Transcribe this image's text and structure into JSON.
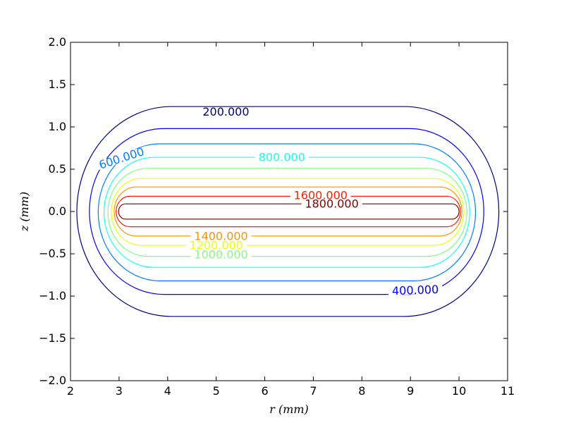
{
  "chart_data": {
    "type": "contour",
    "xlabel": "r (mm)",
    "ylabel": "z (mm)",
    "xlim": [
      2,
      11
    ],
    "ylim": [
      -2.0,
      2.0
    ],
    "xticks": [
      2,
      3,
      4,
      5,
      6,
      7,
      8,
      9,
      10,
      11
    ],
    "yticks": [
      -2.0,
      -1.5,
      -1.0,
      -0.5,
      0.0,
      0.5,
      1.0,
      1.5,
      2.0
    ],
    "xtick_labels": [
      "2",
      "3",
      "4",
      "5",
      "6",
      "7",
      "8",
      "9",
      "10",
      "11"
    ],
    "ytick_labels": [
      "−2.0",
      "−1.5",
      "−1.0",
      "−0.5",
      "0.0",
      "0.5",
      "1.0",
      "1.5",
      "2.0"
    ],
    "grid": false,
    "colormap": "jet",
    "levels": [
      {
        "value": 200,
        "label": "200.000",
        "color": "#00007f",
        "r": [
          2.13,
          10.82
        ],
        "z": [
          -1.24,
          1.24
        ]
      },
      {
        "value": 400,
        "label": "400.000",
        "color": "#0000ff",
        "r": [
          2.39,
          10.51
        ],
        "z": [
          -0.98,
          0.98
        ]
      },
      {
        "value": 600,
        "label": "600.000",
        "color": "#007fff",
        "r": [
          2.57,
          10.34
        ],
        "z": [
          -0.82,
          0.8
        ]
      },
      {
        "value": 800,
        "label": "800.000",
        "color": "#19ffe6",
        "r": [
          2.69,
          10.22
        ],
        "z": [
          -0.66,
          0.64
        ]
      },
      {
        "value": 1000,
        "label": "1000.000",
        "color": "#7fff7f",
        "r": [
          2.77,
          10.16
        ],
        "z": [
          -0.53,
          0.51
        ]
      },
      {
        "value": 1200,
        "label": "1200.000",
        "color": "#e6ff19",
        "r": [
          2.84,
          10.1
        ],
        "z": [
          -0.4,
          0.39
        ]
      },
      {
        "value": 1400,
        "label": "1400.000",
        "color": "#ff9400",
        "r": [
          2.9,
          10.06
        ],
        "z": [
          -0.29,
          0.29
        ]
      },
      {
        "value": 1600,
        "label": "1600.000",
        "color": "#ff1d00",
        "r": [
          2.94,
          10.03
        ],
        "z": [
          -0.18,
          0.18
        ]
      },
      {
        "value": 1800,
        "label": "1800.000",
        "color": "#7f0000",
        "r": [
          2.99,
          10.0
        ],
        "z": [
          -0.09,
          0.09
        ]
      }
    ],
    "label_positions": [
      {
        "label": "200.000",
        "r": 5.2,
        "z": 1.18,
        "angle": 0
      },
      {
        "label": "400.000",
        "r": 9.1,
        "z": -0.93,
        "angle": -2
      },
      {
        "label": "600.000",
        "r": 3.05,
        "z": 0.63,
        "angle": -18
      },
      {
        "label": "800.000",
        "r": 6.35,
        "z": 0.64,
        "angle": 0
      },
      {
        "label": "1000.000",
        "r": 5.1,
        "z": -0.51,
        "angle": 0
      },
      {
        "label": "1200.000",
        "r": 5.0,
        "z": -0.4,
        "angle": 0
      },
      {
        "label": "1400.000",
        "r": 5.1,
        "z": -0.29,
        "angle": 0
      },
      {
        "label": "1600.000",
        "r": 7.15,
        "z": 0.19,
        "angle": 0
      },
      {
        "label": "1800.000",
        "r": 7.38,
        "z": 0.09,
        "angle": 0
      }
    ]
  }
}
